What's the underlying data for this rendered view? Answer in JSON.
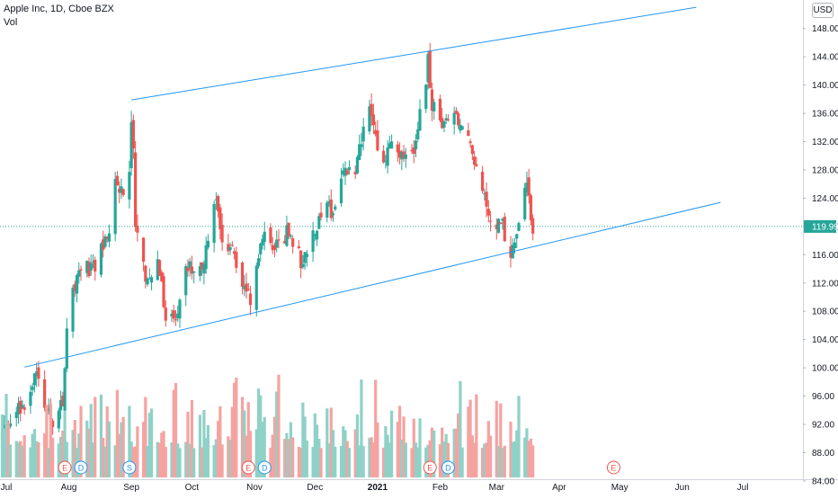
{
  "legend": {
    "symbol_title": "Apple Inc, 1D, Cboe BZX",
    "volume_label": "Vol"
  },
  "currency": "USD",
  "last_price_label": "119.99",
  "colors": {
    "up": "#26a69a",
    "down": "#ef5350",
    "vol_up": "#8fd1c7",
    "vol_down": "#f5a3a1",
    "trendline": "#2196f3",
    "price_badge": "#26a69a",
    "event_earnings": "#ef5350",
    "event_dividend": "#2196f3",
    "event_split": "#2196f3"
  },
  "chart_data": {
    "type": "candlestick",
    "y_axis": {
      "ticks": [
        "148.00",
        "144.00",
        "140.00",
        "136.00",
        "132.00",
        "128.00",
        "124.00",
        "120.00",
        "116.00",
        "112.00",
        "108.00",
        "104.00",
        "100.00",
        "96.00",
        "92.00",
        "88.00",
        "84.00"
      ],
      "range": [
        83,
        151
      ]
    },
    "x_axis": {
      "ticks": [
        {
          "date": "2020-07-01",
          "label": "Jul"
        },
        {
          "date": "2020-08-01",
          "label": "Aug"
        },
        {
          "date": "2020-09-01",
          "label": "Sep"
        },
        {
          "date": "2020-10-01",
          "label": "Oct"
        },
        {
          "date": "2020-11-01",
          "label": "Nov"
        },
        {
          "date": "2020-12-01",
          "label": "Dec"
        },
        {
          "date": "2021-01-01",
          "label": "2021"
        },
        {
          "date": "2021-02-01",
          "label": "Feb"
        },
        {
          "date": "2021-03-01",
          "label": "Mar"
        },
        {
          "date": "2021-04-01",
          "label": "Apr"
        },
        {
          "date": "2021-05-01",
          "label": "May"
        },
        {
          "date": "2021-06-01",
          "label": "Jun"
        },
        {
          "date": "2021-07-01",
          "label": "Jul"
        }
      ]
    },
    "price_anchors": [
      [
        "2020-06-29",
        90.5
      ],
      [
        "2020-07-07",
        94.2
      ],
      [
        "2020-07-13",
        96.5
      ],
      [
        "2020-07-16",
        99.0
      ],
      [
        "2020-07-23",
        92.0
      ],
      [
        "2020-07-29",
        95.5
      ],
      [
        "2020-07-31",
        106.3
      ],
      [
        "2020-08-06",
        113.9
      ],
      [
        "2020-08-13",
        114.3
      ],
      [
        "2020-08-20",
        118.3
      ],
      [
        "2020-08-24",
        125.9
      ],
      [
        "2020-08-28",
        125.0
      ],
      [
        "2020-08-31",
        129.0
      ],
      [
        "2020-09-01",
        134.2
      ],
      [
        "2020-09-02",
        131.4
      ],
      [
        "2020-09-03",
        120.9
      ],
      [
        "2020-09-08",
        112.8
      ],
      [
        "2020-09-14",
        115.4
      ],
      [
        "2020-09-18",
        106.8
      ],
      [
        "2020-09-23",
        107.1
      ],
      [
        "2020-09-28",
        114.9
      ],
      [
        "2020-10-02",
        113.0
      ],
      [
        "2020-10-09",
        116.9
      ],
      [
        "2020-10-12",
        124.4
      ],
      [
        "2020-10-16",
        119.0
      ],
      [
        "2020-10-23",
        115.0
      ],
      [
        "2020-10-28",
        111.2
      ],
      [
        "2020-10-30",
        108.9
      ],
      [
        "2020-11-05",
        118.7
      ],
      [
        "2020-11-10",
        115.9
      ],
      [
        "2020-11-17",
        119.4
      ],
      [
        "2020-11-24",
        115.2
      ],
      [
        "2020-11-30",
        119.0
      ],
      [
        "2020-12-04",
        122.3
      ],
      [
        "2020-12-11",
        122.4
      ],
      [
        "2020-12-16",
        127.8
      ],
      [
        "2020-12-21",
        128.2
      ],
      [
        "2020-12-28",
        136.7
      ],
      [
        "2020-12-31",
        132.7
      ],
      [
        "2021-01-04",
        129.4
      ],
      [
        "2021-01-08",
        132.1
      ],
      [
        "2021-01-14",
        128.9
      ],
      [
        "2021-01-20",
        132.0
      ],
      [
        "2021-01-26",
        143.2
      ],
      [
        "2021-01-28",
        137.1
      ],
      [
        "2021-02-03",
        133.9
      ],
      [
        "2021-02-10",
        135.4
      ],
      [
        "2021-02-17",
        130.8
      ],
      [
        "2021-02-25",
        121.0
      ],
      [
        "2021-03-04",
        120.1
      ],
      [
        "2021-03-08",
        116.4
      ],
      [
        "2021-03-12",
        121.0
      ],
      [
        "2021-03-16",
        125.6
      ],
      [
        "2021-03-19",
        119.99
      ]
    ],
    "volume_range_millions": [
      50,
      190
    ],
    "trendlines": [
      {
        "from": [
          "2020-09-01",
          137.9
        ],
        "to": [
          "2021-06-08",
          151.0
        ]
      },
      {
        "from": [
          "2020-07-10",
          100.1
        ],
        "to": [
          "2021-06-20",
          123.4
        ]
      }
    ],
    "events": [
      {
        "type": "earnings",
        "label": "E",
        "date": "2020-07-30"
      },
      {
        "type": "dividend",
        "label": "D",
        "date": "2020-08-07"
      },
      {
        "type": "split",
        "label": "S",
        "date": "2020-08-31"
      },
      {
        "type": "earnings",
        "label": "E",
        "date": "2020-10-29"
      },
      {
        "type": "dividend",
        "label": "D",
        "date": "2020-11-06"
      },
      {
        "type": "earnings",
        "label": "E",
        "date": "2021-01-27"
      },
      {
        "type": "dividend",
        "label": "D",
        "date": "2021-02-05"
      },
      {
        "type": "earnings_future",
        "label": "E",
        "date": "2021-04-28"
      }
    ],
    "last_price": 119.99,
    "grid": false
  }
}
